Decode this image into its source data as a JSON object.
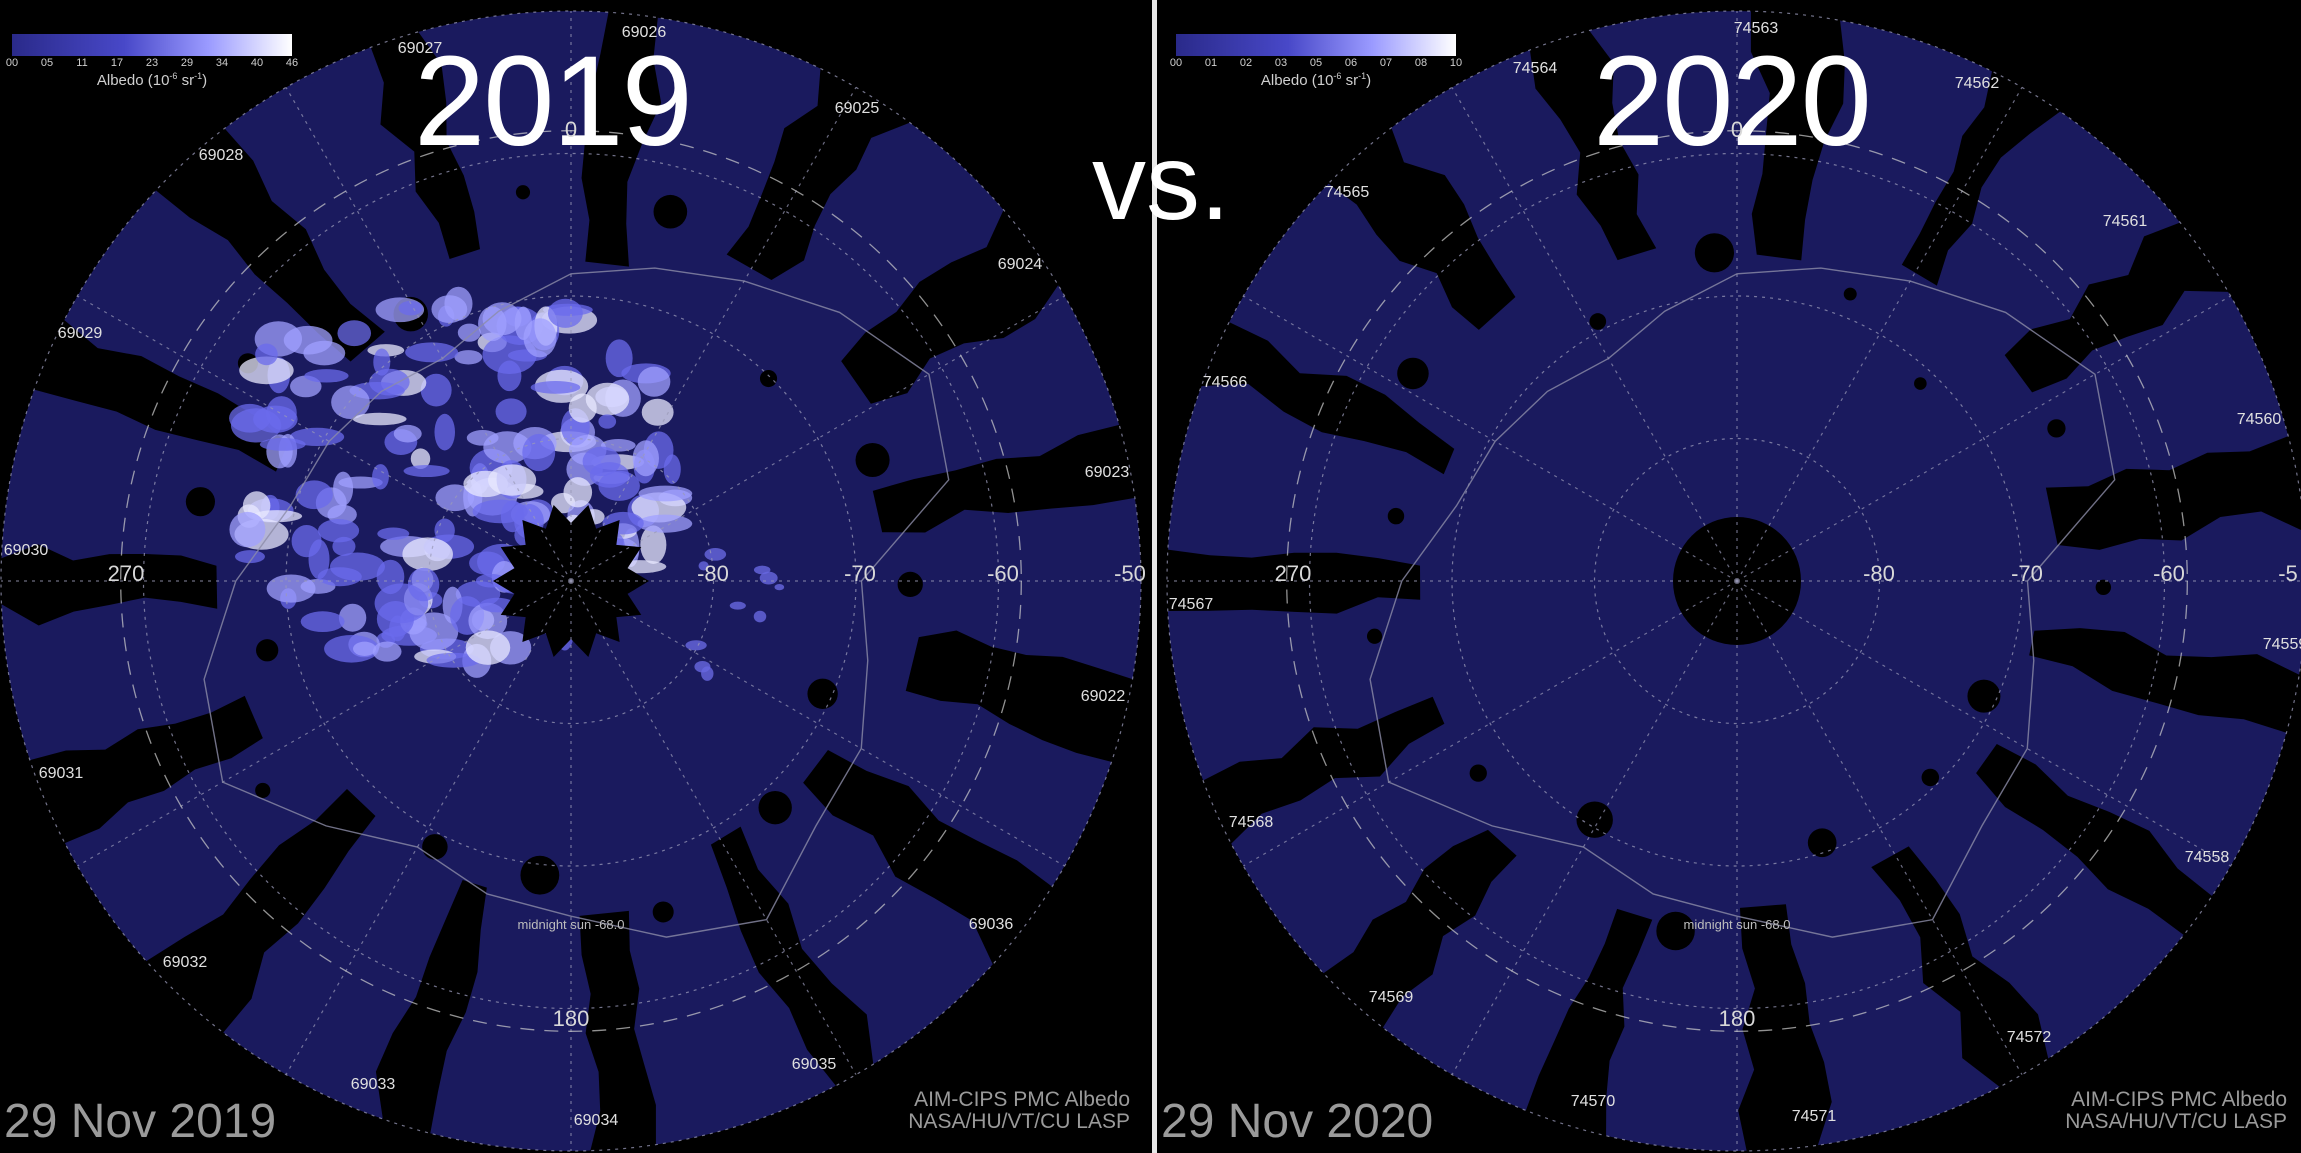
{
  "vs_label": "vs.",
  "colors": {
    "background": "#000000",
    "swath": "#1a1a5e",
    "cloud": "#7a7af0",
    "divider": "#e8e8e8"
  },
  "panels": [
    {
      "year": "2019",
      "date": "29 Nov 2019",
      "credit_line1": "AIM-CIPS PMC Albedo",
      "credit_line2": "NASA/HU/VT/CU LASP",
      "midnight_sun": "midnight sun -68.0",
      "colorbar": {
        "title": "Albedo (10",
        "title_exp": "-6",
        "title_unit": " sr",
        "title_unit_exp": "-1",
        "title_close": ")",
        "ticks": [
          "00",
          "05",
          "11",
          "17",
          "23",
          "29",
          "34",
          "40",
          "46"
        ]
      },
      "lon_labels": {
        "top": "0",
        "left": "270",
        "bottom": "180"
      },
      "lat_labels": [
        "-80",
        "-70",
        "-60",
        "-50"
      ],
      "orbits": [
        "69026",
        "69027",
        "69025",
        "69028",
        "69024",
        "69029",
        "69023",
        "69030",
        "69022",
        "69031",
        "69036",
        "69032",
        "69035",
        "69033",
        "69034"
      ],
      "cloud_present": true
    },
    {
      "year": "2020",
      "date": "29 Nov 2020",
      "credit_line1": "AIM-CIPS PMC Albedo",
      "credit_line2": "NASA/HU/VT/CU LASP",
      "midnight_sun": "midnight sun -68.0",
      "colorbar": {
        "title": "Albedo (10",
        "title_exp": "-6",
        "title_unit": " sr",
        "title_unit_exp": "-1",
        "title_close": ")",
        "ticks": [
          "00",
          "01",
          "02",
          "03",
          "05",
          "06",
          "07",
          "08",
          "10"
        ]
      },
      "lon_labels": {
        "top": "0",
        "left": "270",
        "bottom": "180"
      },
      "lat_labels": [
        "-80",
        "-70",
        "-60",
        "-5"
      ],
      "orbits": [
        "74563",
        "74564",
        "74562",
        "74565",
        "74561",
        "74566",
        "74560",
        "74567",
        "74559",
        "74568",
        "74558",
        "74569",
        "74572",
        "74570",
        "74571"
      ],
      "cloud_present": false
    }
  ]
}
